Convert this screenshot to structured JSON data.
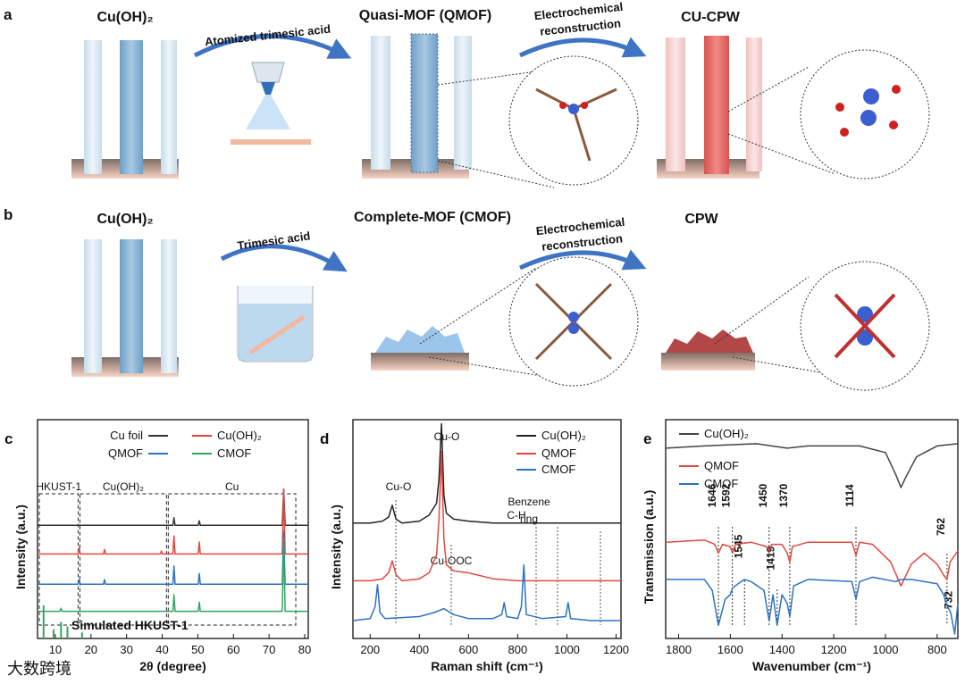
{
  "schematic": {
    "a": {
      "label": "a",
      "start": "Cu(OH)₂",
      "step1": "Atomized trimesic acid",
      "mid": "Quasi-MOF (QMOF)",
      "step2": [
        "Electrochemical",
        "reconstruction"
      ],
      "end": "CU-CPW"
    },
    "b": {
      "label": "b",
      "start": "Cu(OH)₂",
      "step1": "Trimesic acid",
      "mid": "Complete-MOF (CMOF)",
      "step2": [
        "Electrochemical",
        "reconstruction"
      ],
      "end": "CPW"
    }
  },
  "watermark": "大数跨境",
  "chart_data": [
    {
      "type": "line",
      "panel": "c",
      "xlabel": "2θ (degree)",
      "ylabel": "Intensity (a.u.)",
      "xlim": [
        5,
        81
      ],
      "ylim": [
        0,
        14.5
      ],
      "xticks": [
        10,
        20,
        30,
        40,
        50,
        60,
        70,
        80
      ],
      "regions": [
        {
          "label": "HKUST-1",
          "x": [
            5.5,
            16.4
          ]
        },
        {
          "label": "Cu(OH)₂",
          "x": [
            16.9,
            41.2
          ]
        },
        {
          "label": "Cu",
          "x": [
            41.7,
            77.5
          ]
        }
      ],
      "series": [
        {
          "name": "Cu foil",
          "color": "#333333",
          "x": [
            5,
            43.0,
            43.3,
            43.6,
            50.1,
            50.4,
            50.7,
            73.7,
            74.1,
            74.5,
            81
          ],
          "values": [
            7.5,
            7.5,
            8.0,
            7.5,
            7.5,
            7.8,
            7.5,
            7.5,
            9.9,
            7.5,
            7.5
          ]
        },
        {
          "name": "Cu(OH)₂",
          "color": "#e0483f",
          "x": [
            5,
            16.4,
            16.7,
            17.0,
            23.5,
            23.8,
            24.1,
            39.5,
            39.8,
            40.1,
            43.0,
            43.3,
            43.6,
            50.1,
            50.4,
            50.7,
            73.7,
            74.1,
            74.5,
            81
          ],
          "values": [
            5.6,
            5.6,
            6.0,
            5.6,
            5.6,
            5.9,
            5.6,
            5.6,
            5.8,
            5.6,
            5.6,
            6.8,
            5.6,
            5.6,
            6.4,
            5.6,
            5.6,
            9.9,
            5.6,
            5.6
          ]
        },
        {
          "name": "QMOF",
          "color": "#2c72c2",
          "x": [
            5,
            16.4,
            16.7,
            17.0,
            23.5,
            23.8,
            24.1,
            43.0,
            43.3,
            43.6,
            50.1,
            50.4,
            50.7,
            73.7,
            74.1,
            74.5,
            81
          ],
          "values": [
            3.6,
            3.6,
            3.9,
            3.6,
            3.6,
            3.9,
            3.6,
            3.6,
            4.8,
            3.6,
            3.6,
            4.3,
            3.6,
            3.6,
            7.1,
            3.6,
            3.6
          ]
        },
        {
          "name": "CMOF",
          "color": "#34a462",
          "x": [
            5,
            11.3,
            11.6,
            11.9,
            43.0,
            43.3,
            43.6,
            50.1,
            50.4,
            50.7,
            73.7,
            74.1,
            74.5,
            81
          ],
          "values": [
            1.8,
            1.8,
            2.0,
            1.8,
            1.8,
            2.9,
            1.8,
            1.8,
            2.4,
            1.8,
            1.8,
            6.6,
            1.8,
            1.8
          ]
        },
        {
          "name": "Simulated HKUST-1",
          "color": "#34a462",
          "style": "stick",
          "x": [
            6.7,
            9.5,
            11.6,
            13.4,
            17.5
          ],
          "values": [
            2.2,
            0.6,
            1.1,
            0.8,
            0.4
          ]
        }
      ]
    },
    {
      "type": "line",
      "panel": "d",
      "xlabel": "Raman shift (cm⁻¹)",
      "ylabel": "Intensity (a.u.)",
      "xlim": [
        130,
        1220
      ],
      "ylim": [
        0,
        11
      ],
      "xticks": [
        200,
        400,
        600,
        800,
        1000,
        1200
      ],
      "annotations": [
        "Cu-O",
        "Cu-O",
        "C-H",
        "Benzene",
        "ring",
        "Cu-OOC"
      ],
      "series": [
        {
          "name": "Cu(OH)₂",
          "color": "#222222",
          "x": [
            130,
            200,
            250,
            275,
            290,
            305,
            330,
            400,
            440,
            470,
            480,
            490,
            500,
            510,
            540,
            600,
            700,
            800,
            900,
            1000,
            1100,
            1220
          ],
          "values": [
            5.8,
            5.8,
            5.9,
            6.1,
            6.7,
            6.0,
            5.8,
            5.9,
            6.2,
            6.8,
            8,
            10.8,
            7.2,
            6.3,
            6.0,
            5.9,
            5.8,
            5.8,
            5.8,
            5.8,
            5.8,
            5.8
          ]
        },
        {
          "name": "QMOF",
          "color": "#e0483f",
          "x": [
            130,
            200,
            250,
            275,
            290,
            305,
            330,
            400,
            440,
            470,
            480,
            490,
            500,
            510,
            540,
            600,
            700,
            800,
            900,
            1000,
            1100,
            1220
          ],
          "values": [
            2.9,
            2.9,
            3.0,
            3.3,
            3.9,
            3.2,
            2.9,
            3.0,
            3.3,
            4.2,
            6,
            9.4,
            5,
            3.7,
            3.4,
            3.3,
            3.0,
            2.9,
            2.9,
            2.9,
            2.9,
            2.9
          ]
        },
        {
          "name": "CMOF",
          "color": "#2c72c2",
          "x": [
            130,
            200,
            220,
            230,
            240,
            260,
            400,
            460,
            500,
            540,
            600,
            700,
            735,
            745,
            755,
            800,
            815,
            825,
            835,
            900,
            995,
            1005,
            1015,
            1100,
            1220
          ],
          "values": [
            0.9,
            1.0,
            1.6,
            2.7,
            1.3,
            1.0,
            1.1,
            1.3,
            1.5,
            1.2,
            1.0,
            1.0,
            1.2,
            1.8,
            1.1,
            1.0,
            1.6,
            3.7,
            1.2,
            1.0,
            1.1,
            1.8,
            1.0,
            0.9,
            0.9
          ]
        }
      ]
    },
    {
      "type": "line",
      "panel": "e",
      "xlabel": "Wavenumber (cm⁻¹)",
      "ylabel": "Transmission (a.u.)",
      "xlim": [
        1850,
        720
      ],
      "ylim": [
        0,
        10
      ],
      "xticks": [
        1800,
        1600,
        1400,
        1200,
        1000,
        800
      ],
      "peak_labels": [
        1646,
        1592,
        1450,
        1370,
        1114,
        762,
        1545,
        1419,
        732
      ],
      "series": [
        {
          "name": "Cu(OH)₂",
          "color": "#444444",
          "x": [
            1850,
            1700,
            1500,
            1380,
            1300,
            1100,
            1000,
            960,
            940,
            920,
            880,
            800,
            720
          ],
          "values": [
            8.7,
            8.8,
            8.9,
            8.7,
            8.8,
            8.8,
            8.5,
            7.5,
            6.9,
            7.4,
            8.3,
            8.8,
            8.9
          ]
        },
        {
          "name": "QMOF",
          "color": "#e0483f",
          "x": [
            1850,
            1700,
            1660,
            1646,
            1630,
            1600,
            1592,
            1580,
            1520,
            1460,
            1450,
            1440,
            1400,
            1380,
            1370,
            1360,
            1300,
            1130,
            1114,
            1100,
            1050,
            980,
            940,
            900,
            850,
            800,
            775,
            762,
            750,
            720
          ],
          "values": [
            4.4,
            4.5,
            4.3,
            3.9,
            4.3,
            4.2,
            3.9,
            4.3,
            4.4,
            4.2,
            4.0,
            4.3,
            4.3,
            3.9,
            3.5,
            4.2,
            4.4,
            4.4,
            3.8,
            4.4,
            4.3,
            3.5,
            2.4,
            3.4,
            3.9,
            3.4,
            2.9,
            2.7,
            3.5,
            4.0
          ]
        },
        {
          "name": "CMOF",
          "color": "#2c72c2",
          "x": [
            1850,
            1700,
            1670,
            1646,
            1620,
            1600,
            1592,
            1570,
            1545,
            1520,
            1470,
            1450,
            1435,
            1419,
            1400,
            1380,
            1370,
            1355,
            1300,
            1130,
            1114,
            1100,
            1050,
            960,
            940,
            900,
            800,
            775,
            762,
            748,
            732,
            720
          ],
          "values": [
            2.7,
            2.7,
            2.2,
            0.6,
            1.8,
            2.0,
            2.3,
            2.5,
            2.7,
            2.6,
            2.2,
            0.8,
            2.0,
            0.6,
            2.0,
            1.6,
            1.0,
            2.4,
            2.7,
            2.6,
            1.8,
            2.6,
            2.8,
            2.6,
            2.7,
            2.7,
            2.5,
            2.0,
            1.5,
            1.2,
            0.2,
            1.6
          ]
        }
      ]
    }
  ]
}
